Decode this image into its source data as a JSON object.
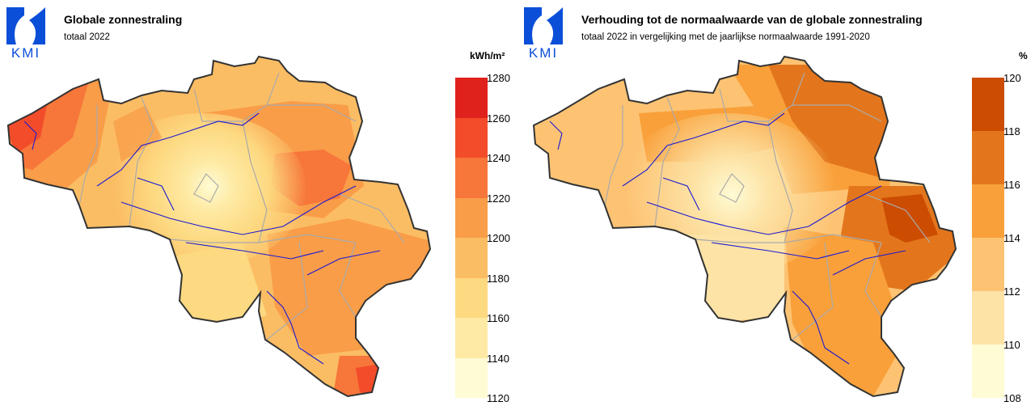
{
  "logo_text": "KMI",
  "left": {
    "title": "Globale zonnestraling",
    "subtitle": "totaal 2022",
    "unit": "kWh/m²",
    "legend_ticks": [
      "1280",
      "1260",
      "1240",
      "1220",
      "1200",
      "1180",
      "1160",
      "1140",
      "1120"
    ],
    "legend_colors": [
      "#e0221c",
      "#f34c2a",
      "#f7763a",
      "#f99d48",
      "#fbbd64",
      "#fdd981",
      "#feeaa4",
      "#fffbd4"
    ]
  },
  "right": {
    "title": "Verhouding tot de normaalwaarde van de globale zonnestraling",
    "subtitle": "totaal 2022 in vergelijking met de jaarlijkse normaalwaarde 1991-2020",
    "unit": "%",
    "legend_ticks": [
      "120",
      "118",
      "116",
      "114",
      "112",
      "110",
      "108"
    ],
    "legend_colors": [
      "#cc4c02",
      "#e3761c",
      "#f9a03a",
      "#fdc373",
      "#fde3a6",
      "#fffbd4"
    ]
  }
}
